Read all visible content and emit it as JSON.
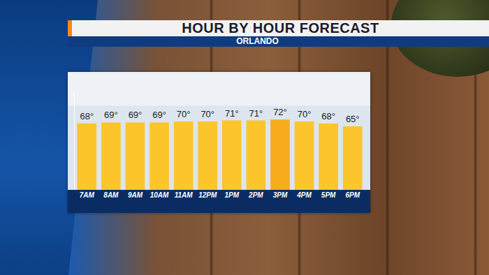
{
  "chart_data": {
    "type": "bar",
    "title": "HOUR BY HOUR FORECAST",
    "subtitle": "ORLANDO",
    "categories": [
      "7AM",
      "8AM",
      "9AM",
      "10AM",
      "11AM",
      "12PM",
      "1PM",
      "2PM",
      "3PM",
      "4PM",
      "5PM",
      "6PM"
    ],
    "values": [
      68,
      69,
      69,
      69,
      70,
      70,
      71,
      71,
      72,
      70,
      68,
      65
    ],
    "value_labels": [
      "68°",
      "69°",
      "69°",
      "69°",
      "70°",
      "70°",
      "71°",
      "71°",
      "72°",
      "70°",
      "68°",
      "65°"
    ],
    "colors": [
      "#fcc52b",
      "#fcc52b",
      "#fcc52b",
      "#fcc52b",
      "#fcc52b",
      "#fcc52b",
      "#fcc52b",
      "#fcc52b",
      "#f7ac1e",
      "#fcc52b",
      "#fcc52b",
      "#fcc52b"
    ],
    "ylim": [
      0,
      100
    ],
    "data_labels": true,
    "tick_labels": "x",
    "grid": false
  }
}
